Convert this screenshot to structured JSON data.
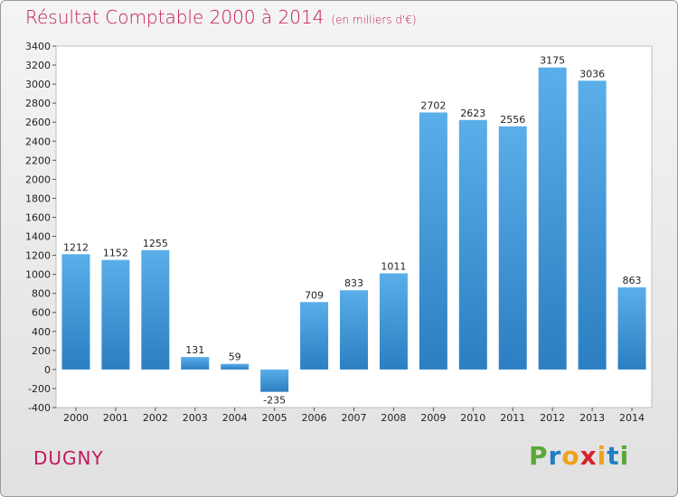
{
  "chart_data": {
    "type": "bar",
    "title": "Résultat Comptable 2000 à 2014",
    "subtitle": "(en milliers d'€)",
    "categories": [
      "2000",
      "2001",
      "2002",
      "2003",
      "2004",
      "2005",
      "2006",
      "2007",
      "2008",
      "2009",
      "2010",
      "2011",
      "2012",
      "2013",
      "2014"
    ],
    "values": [
      1212,
      1152,
      1255,
      131,
      59,
      -235,
      709,
      833,
      1011,
      2702,
      2623,
      2556,
      3175,
      3036,
      863
    ],
    "ylim": [
      -400,
      3400
    ],
    "ystep": 200,
    "grid": false,
    "bar_color": "#4fa3e0"
  },
  "commune": "DUGNY",
  "logo": {
    "letters": [
      "P",
      "r",
      "o",
      "x",
      "i",
      "t",
      "i"
    ],
    "colors": [
      "#5aa838",
      "#1e7fc4",
      "#f0a21a",
      "#d8222e",
      "#f0a21a",
      "#1e7fc4",
      "#5aa838"
    ]
  }
}
